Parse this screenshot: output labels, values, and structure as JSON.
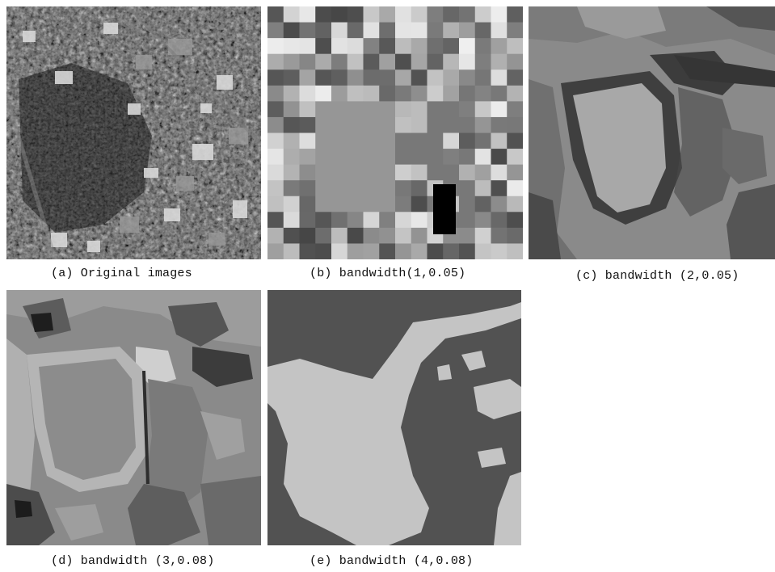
{
  "figure": {
    "panels": [
      {
        "id": "a",
        "caption": "(a) Original images"
      },
      {
        "id": "b",
        "caption": "(b) bandwidth(1,0.05)"
      },
      {
        "id": "c",
        "caption": "(c) bandwidth (2,0.05)"
      },
      {
        "id": "d",
        "caption": "(d) bandwidth (3,0.08)"
      },
      {
        "id": "e",
        "caption": "(e) bandwidth (4,0.08)"
      }
    ]
  }
}
